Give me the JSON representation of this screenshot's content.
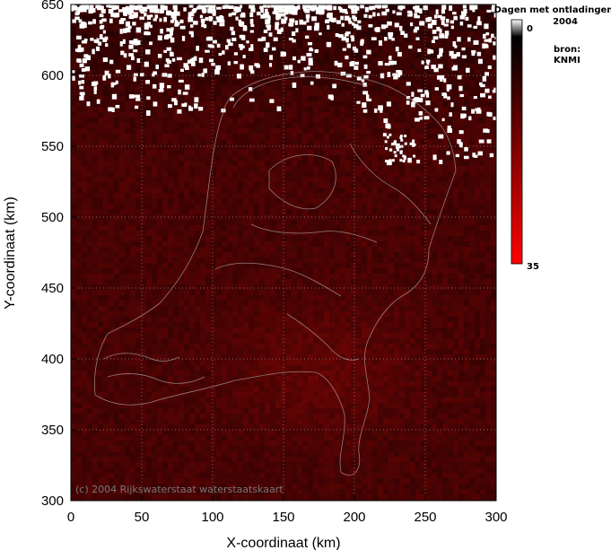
{
  "chart_data": {
    "type": "heatmap",
    "title": "",
    "xlabel": "X-coordinaat (km)",
    "ylabel": "Y-coordinaat (km)",
    "xlim": [
      0,
      300
    ],
    "ylim": [
      300,
      650
    ],
    "x_ticks": [
      0,
      50,
      100,
      150,
      200,
      250,
      300
    ],
    "y_ticks": [
      300,
      350,
      400,
      450,
      500,
      550,
      600,
      650
    ],
    "grid": true,
    "colorbar": {
      "title": "Dagen met ontladingen",
      "year": "2004",
      "min": 0,
      "max": 35,
      "min_label": "0",
      "max_label": "35",
      "colors": [
        "#ffffff",
        "#000000",
        "#ff0000"
      ]
    },
    "source_label": "bron:",
    "source_value": "KNMI",
    "watermark": "(c) 2004 Rijkswaterstaat waterstaatskaart",
    "background_value_typical": 6,
    "north_sea_white_speckle": true
  }
}
